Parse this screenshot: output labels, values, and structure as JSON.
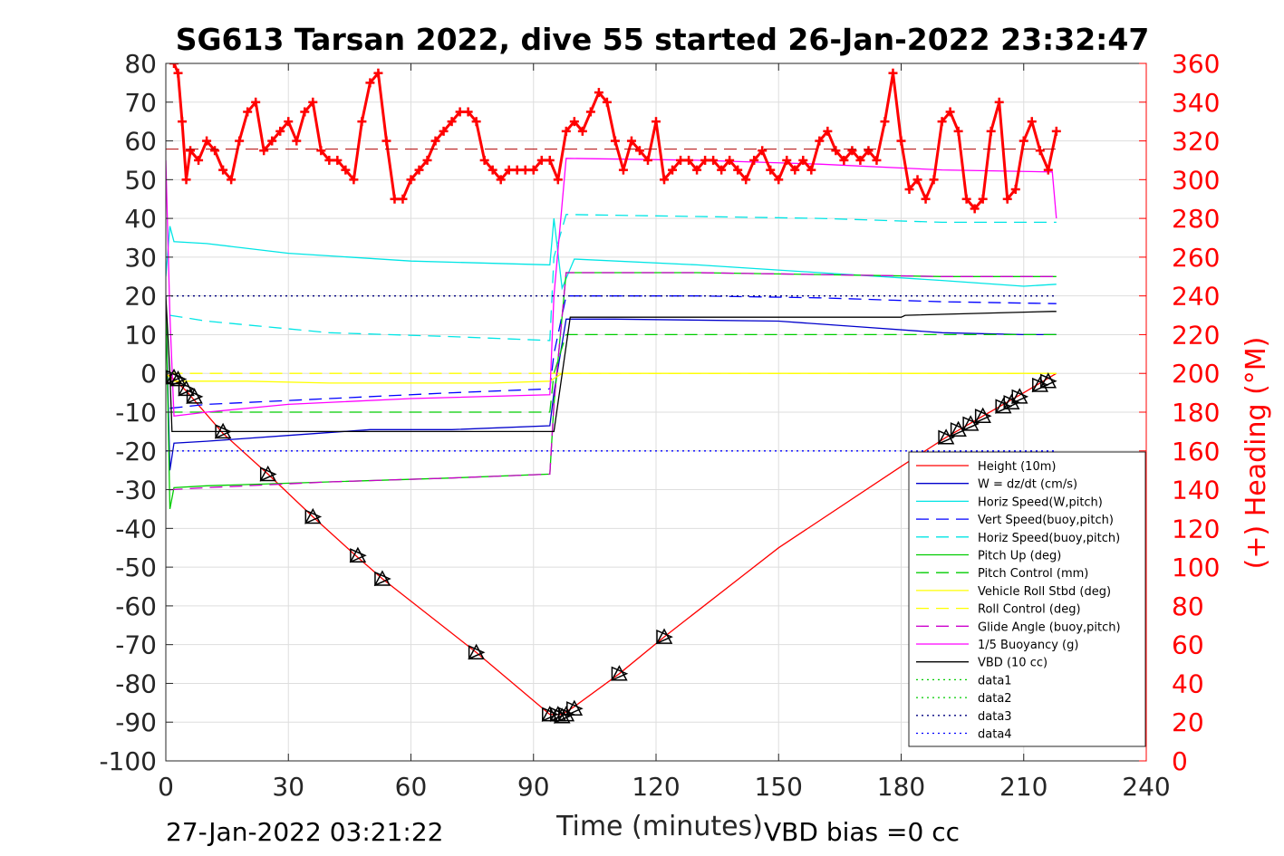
{
  "chart_data": {
    "type": "line",
    "title": "SG613 Tarsan 2022, dive 55 started 26-Jan-2022 23:32:47",
    "xlabel": "Time (minutes)",
    "ylabel_right": "(+) Heading (°M)",
    "footer_left": "27-Jan-2022 03:21:22",
    "footer_right": "VBD bias =0 cc",
    "xlim": [
      0,
      240
    ],
    "ylim": [
      -100,
      80
    ],
    "ylim_right": [
      0,
      360
    ],
    "xticks": [
      0,
      30,
      60,
      90,
      120,
      150,
      180,
      210,
      240
    ],
    "yticks": [
      -100,
      -90,
      -80,
      -70,
      -60,
      -50,
      -40,
      -30,
      -20,
      -10,
      0,
      10,
      20,
      30,
      40,
      50,
      60,
      70,
      80
    ],
    "yticks_right": [
      0,
      20,
      40,
      60,
      80,
      100,
      120,
      140,
      160,
      180,
      200,
      220,
      240,
      260,
      280,
      300,
      320,
      340,
      360
    ],
    "grid": true,
    "legend_position": "bottom-right",
    "colors": {
      "red": "#ff0000",
      "blue": "#0000cc",
      "cyan": "#00ffff",
      "green": "#00cc00",
      "yellow": "#ffff00",
      "magenta": "#ff00ff",
      "black": "#000000",
      "darkblue": "#0000ff"
    },
    "series": [
      {
        "name": "Height (10m)",
        "color": "#ff0000",
        "style": "solid",
        "x": [
          0,
          2,
          5,
          14,
          25,
          36,
          47,
          53,
          76,
          94,
          97,
          100,
          111,
          122,
          150,
          180,
          191,
          200,
          210,
          218
        ],
        "y": [
          0,
          -1.5,
          -4.5,
          -15.5,
          -26,
          -37,
          -47.5,
          -53,
          -72,
          -88,
          -88,
          -86,
          -77.5,
          -68,
          -45,
          -24,
          -16.5,
          -11,
          -5,
          0
        ]
      },
      {
        "name": "W = dz/dt (cm/s)",
        "color": "#0000cc",
        "style": "solid",
        "x": [
          0,
          1,
          2,
          10,
          30,
          50,
          70,
          94,
          95,
          98,
          110,
          150,
          170,
          190,
          210,
          218
        ],
        "y": [
          18,
          -25,
          -18,
          -17.5,
          -16,
          -14.5,
          -14.5,
          -13.5,
          -5,
          14,
          14,
          13.5,
          12,
          10.5,
          10,
          10
        ]
      },
      {
        "name": "Horiz Speed(W,pitch)",
        "color": "#00e5e5",
        "style": "solid",
        "x": [
          0,
          1,
          2,
          10,
          30,
          60,
          94,
          95,
          97,
          100,
          130,
          160,
          190,
          210,
          218
        ],
        "y": [
          25,
          38,
          34,
          33.5,
          31,
          29,
          28,
          40,
          22,
          29.5,
          28,
          26,
          24,
          22.5,
          23
        ]
      },
      {
        "name": "Vert Speed(buoy,pitch)",
        "color": "#0000ff",
        "style": "dash",
        "x": [
          1,
          10,
          40,
          70,
          94,
          95,
          98,
          130,
          160,
          190,
          218
        ],
        "y": [
          -9,
          -8,
          -6.5,
          -5,
          -4,
          5,
          20,
          20,
          19.5,
          18.5,
          18
        ]
      },
      {
        "name": "Horiz Speed(buoy,pitch)",
        "color": "#00e5e5",
        "style": "dash",
        "x": [
          1,
          10,
          40,
          70,
          94,
          95,
          98,
          130,
          160,
          190,
          218
        ],
        "y": [
          15,
          13.5,
          10.5,
          9.5,
          8.5,
          30,
          41,
          40.5,
          40,
          39,
          39
        ]
      },
      {
        "name": "Pitch Up (deg)",
        "color": "#00cc00",
        "style": "solid",
        "x": [
          0,
          1,
          2,
          10,
          40,
          70,
          94,
          95,
          98,
          130,
          160,
          190,
          218
        ],
        "y": [
          20,
          -35,
          -29.5,
          -29,
          -28,
          -27,
          -26,
          -8,
          26,
          26,
          25.5,
          25,
          25
        ]
      },
      {
        "name": "Pitch Control (mm)",
        "color": "#00cc00",
        "style": "dash",
        "x": [
          1,
          94,
          95,
          98,
          218
        ],
        "y": [
          -10,
          -10,
          0,
          10,
          10
        ]
      },
      {
        "name": "Vehicle Roll Stbd (deg)",
        "color": "#ffff00",
        "style": "solid",
        "x": [
          0,
          2,
          20,
          40,
          60,
          80,
          94,
          97,
          100,
          130,
          160,
          190,
          210,
          218
        ],
        "y": [
          0,
          -2,
          -2,
          -2.5,
          -2.5,
          -2.5,
          -2,
          0,
          0,
          0,
          0,
          0,
          0,
          0
        ]
      },
      {
        "name": "Roll Control (deg)",
        "color": "#ffff00",
        "style": "dash",
        "x": [
          1,
          94,
          95,
          98,
          218
        ],
        "y": [
          0,
          0,
          0,
          0,
          0
        ]
      },
      {
        "name": "Glide Angle (buoy,pitch)",
        "color": "#cc00cc",
        "style": "dash",
        "x": [
          1,
          10,
          40,
          70,
          94,
          95,
          98,
          130,
          160,
          190,
          218
        ],
        "y": [
          -30,
          -29.5,
          -28,
          -27,
          -26,
          -8,
          26,
          26,
          25.5,
          25,
          25
        ]
      },
      {
        "name": "1/5 Buoyancy (g)",
        "color": "#ff00ff",
        "style": "solid",
        "x": [
          0,
          1,
          2,
          10,
          30,
          60,
          94,
          95,
          98,
          130,
          160,
          190,
          217,
          218
        ],
        "y": [
          55,
          15,
          -11,
          -10,
          -8,
          -6.5,
          -5.5,
          20,
          55.5,
          55,
          54,
          52.5,
          52,
          40
        ]
      },
      {
        "name": "VBD (10 cc)",
        "color": "#000000",
        "style": "solid",
        "x": [
          0,
          1,
          1.5,
          94,
          95,
          99,
          180,
          181,
          217,
          218
        ],
        "y": [
          20,
          0,
          -15,
          -15,
          -15,
          14.5,
          14.5,
          15,
          16,
          16
        ]
      },
      {
        "name": "data1",
        "color": "#00cc00",
        "style": "dot",
        "x": [],
        "y": []
      },
      {
        "name": "data2",
        "color": "#00cc00",
        "style": "dot",
        "x": [],
        "y": []
      },
      {
        "name": "data3",
        "color": "#000080",
        "style": "dot",
        "x": [
          0,
          218
        ],
        "y": [
          20,
          20
        ]
      },
      {
        "name": "data4",
        "color": "#0000ff",
        "style": "dot",
        "x": [
          0,
          218
        ],
        "y": [
          -20,
          -20
        ]
      }
    ],
    "heading": {
      "color": "#ff0000",
      "marker": "+",
      "axis": "right",
      "x": [
        2,
        3,
        4,
        5,
        6,
        8,
        10,
        12,
        14,
        16,
        18,
        20,
        22,
        24,
        26,
        28,
        30,
        32,
        34,
        36,
        38,
        40,
        42,
        44,
        46,
        48,
        50,
        52,
        54,
        56,
        58,
        60,
        62,
        64,
        66,
        68,
        70,
        72,
        74,
        76,
        78,
        80,
        82,
        84,
        86,
        88,
        90,
        92,
        94,
        96,
        98,
        100,
        102,
        104,
        106,
        108,
        110,
        112,
        114,
        116,
        118,
        120,
        122,
        124,
        126,
        128,
        130,
        132,
        134,
        136,
        138,
        140,
        142,
        144,
        146,
        148,
        150,
        152,
        154,
        156,
        158,
        160,
        162,
        164,
        166,
        168,
        170,
        172,
        174,
        176,
        178,
        180,
        182,
        184,
        186,
        188,
        190,
        192,
        194,
        196,
        198,
        200,
        202,
        204,
        206,
        208,
        210,
        212,
        214,
        216,
        218
      ],
      "y": [
        360,
        355,
        330,
        300,
        315,
        310,
        320,
        315,
        305,
        300,
        320,
        335,
        340,
        315,
        320,
        325,
        330,
        320,
        335,
        340,
        315,
        310,
        310,
        305,
        300,
        330,
        350,
        355,
        320,
        290,
        290,
        300,
        305,
        310,
        320,
        325,
        330,
        335,
        335,
        330,
        310,
        305,
        300,
        305,
        305,
        305,
        305,
        310,
        310,
        300,
        325,
        330,
        325,
        335,
        345,
        340,
        320,
        305,
        320,
        315,
        310,
        330,
        300,
        305,
        310,
        310,
        305,
        310,
        310,
        305,
        310,
        305,
        300,
        310,
        315,
        305,
        300,
        310,
        305,
        310,
        305,
        320,
        325,
        315,
        310,
        315,
        310,
        315,
        310,
        330,
        355,
        320,
        295,
        300,
        290,
        300,
        330,
        335,
        325,
        290,
        285,
        290,
        325,
        340,
        290,
        295,
        320,
        330,
        315,
        305,
        325
      ]
    },
    "markers": {
      "symbol": "triangles",
      "color": "#000000",
      "x": [
        2,
        3,
        5,
        7,
        14,
        25,
        36,
        47,
        53,
        76,
        94,
        96,
        97,
        98,
        100,
        111,
        122,
        191,
        194,
        197,
        200,
        205,
        207,
        209,
        214,
        216
      ],
      "y": [
        -1,
        -1.5,
        -4,
        -6,
        -15,
        -26,
        -37,
        -47,
        -53,
        -72,
        -88,
        -88,
        -88.5,
        -88,
        -86.5,
        -77.5,
        -68,
        -16.5,
        -14.5,
        -13,
        -11,
        -8.5,
        -7.5,
        -6,
        -3,
        -2
      ]
    }
  }
}
